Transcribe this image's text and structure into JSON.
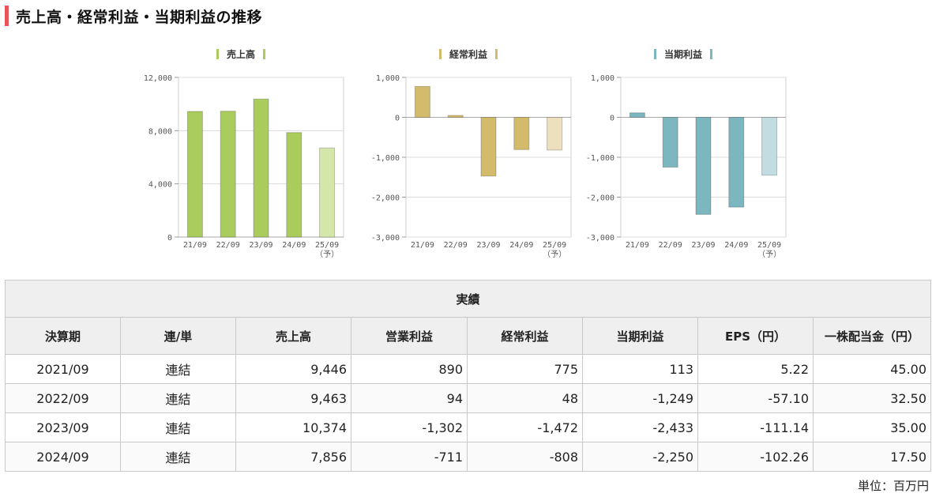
{
  "heading": "売上高・経常利益・当期利益の推移",
  "chart_data": [
    {
      "type": "bar",
      "legend": "売上高",
      "color": "#a9cc5c",
      "forecast_color": "#d4e6a8",
      "categories": [
        "21/09",
        "22/09",
        "23/09",
        "24/09",
        "25/09"
      ],
      "category_notes": [
        "",
        "",
        "",
        "",
        "（予）"
      ],
      "values": [
        9446,
        9463,
        10374,
        7856,
        6700
      ],
      "forecast_index": 4,
      "ylim": [
        0,
        12000
      ],
      "yticks": [
        0,
        4000,
        8000,
        12000
      ],
      "ytick_labels": [
        "0",
        "4,000",
        "8,000",
        "12,000"
      ]
    },
    {
      "type": "bar",
      "legend": "経常利益",
      "color": "#d4bb6c",
      "forecast_color": "#ece0bd",
      "categories": [
        "21/09",
        "22/09",
        "23/09",
        "24/09",
        "25/09"
      ],
      "category_notes": [
        "",
        "",
        "",
        "",
        "（予）"
      ],
      "values": [
        775,
        48,
        -1472,
        -808,
        -820
      ],
      "forecast_index": 4,
      "ylim": [
        -3000,
        1000
      ],
      "yticks": [
        -3000,
        -2000,
        -1000,
        0,
        1000
      ],
      "ytick_labels": [
        "-3,000",
        "-2,000",
        "-1,000",
        "0",
        "1,000"
      ]
    },
    {
      "type": "bar",
      "legend": "当期利益",
      "color": "#7cb7bf",
      "forecast_color": "#c2dde1",
      "categories": [
        "21/09",
        "22/09",
        "23/09",
        "24/09",
        "25/09"
      ],
      "category_notes": [
        "",
        "",
        "",
        "",
        "（予）"
      ],
      "values": [
        113,
        -1249,
        -2433,
        -2250,
        -1450
      ],
      "forecast_index": 4,
      "ylim": [
        -3000,
        1000
      ],
      "yticks": [
        -3000,
        -2000,
        -1000,
        0,
        1000
      ],
      "ytick_labels": [
        "-3,000",
        "-2,000",
        "-1,000",
        "0",
        "1,000"
      ]
    }
  ],
  "table": {
    "group_header": "実績",
    "headers": [
      "決算期",
      "連/単",
      "売上高",
      "営業利益",
      "経常利益",
      "当期利益",
      "EPS（円）",
      "一株配当金（円）"
    ],
    "rows": [
      [
        "2021/09",
        "連結",
        "9,446",
        "890",
        "775",
        "113",
        "5.22",
        "45.00"
      ],
      [
        "2022/09",
        "連結",
        "9,463",
        "94",
        "48",
        "-1,249",
        "-57.10",
        "32.50"
      ],
      [
        "2023/09",
        "連結",
        "10,374",
        "-1,302",
        "-1,472",
        "-2,433",
        "-111.14",
        "35.00"
      ],
      [
        "2024/09",
        "連結",
        "7,856",
        "-711",
        "-808",
        "-2,250",
        "-102.26",
        "17.50"
      ]
    ]
  },
  "unit": "単位：百万円"
}
